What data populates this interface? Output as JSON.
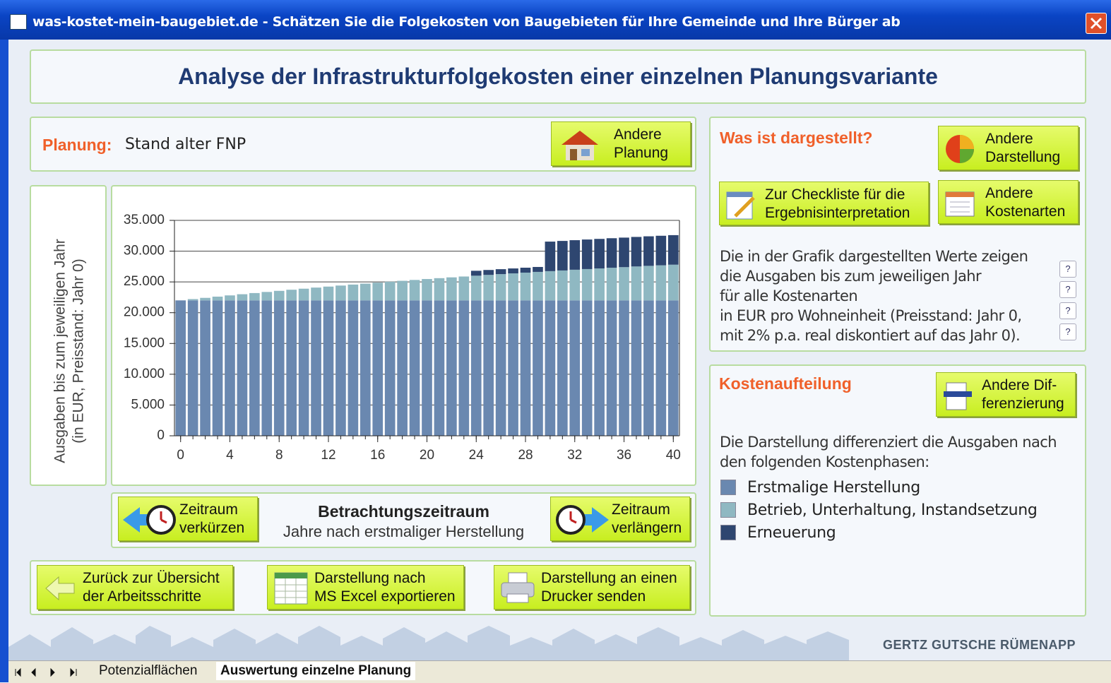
{
  "window_title": "was-kostet-mein-baugebiet.de - Schätzen Sie die Folgekosten von Baugebieten für Ihre Gemeinde und Ihre Bürger ab",
  "header": {
    "title": "Analyse der Infrastrukturfolgekosten einer einzelnen Planungsvariante"
  },
  "planning": {
    "label": "Planung:",
    "value": "Stand alter FNP",
    "button": [
      "Andere",
      "Planung"
    ]
  },
  "info": {
    "title": "Was ist dargestellt?",
    "buttons": {
      "display": [
        "Andere",
        "Darstellung"
      ],
      "checklist": [
        "Zur Checkliste für die",
        "Ergebnisinterpretation"
      ],
      "cost_types": [
        "Andere",
        "Kostenarten"
      ]
    },
    "text": [
      "Die in der Grafik dargestellten Werte zeigen",
      "die Ausgaben bis zum jeweiligen Jahr",
      "für alle Kostenarten",
      "in EUR pro Wohneinheit (Preisstand: Jahr 0,",
      "mit 2% p.a. real diskontiert auf das Jahr 0)."
    ],
    "help": [
      "?",
      "?",
      "?",
      "?"
    ]
  },
  "breakdown": {
    "title": "Kostenaufteilung",
    "button": [
      "Andere Dif-",
      "ferenzierung"
    ],
    "text": [
      "Die Darstellung differenziert die Ausgaben nach",
      "den folgenden Kostenphasen:"
    ]
  },
  "period": {
    "shorten": [
      "Zeitraum",
      "verkürzen"
    ],
    "title": "Betrachtungszeitraum",
    "subtitle": "Jahre nach erstmaliger Herstellung",
    "extend": [
      "Zeitraum",
      "verlängern"
    ]
  },
  "actions": {
    "back": [
      "Zurück zur Übersicht",
      "der Arbeitsschritte"
    ],
    "excel": [
      "Darstellung nach",
      "MS Excel exportieren"
    ],
    "print": [
      "Darstellung an einen",
      "Drucker senden"
    ]
  },
  "logo": "GERTZ GUTSCHE RÜMENAPP",
  "tabs": [
    "Potenzialflächen",
    "Auswertung einzelne Planung"
  ],
  "chart_data": {
    "type": "bar",
    "stacked": true,
    "y_label": [
      "Ausgaben bis zum jeweiligen Jahr",
      "(in EUR, Preisstand: Jahr 0)"
    ],
    "x": [
      0,
      1,
      2,
      3,
      4,
      5,
      6,
      7,
      8,
      9,
      10,
      11,
      12,
      13,
      14,
      15,
      16,
      17,
      18,
      19,
      20,
      21,
      22,
      23,
      24,
      25,
      26,
      27,
      28,
      29,
      30,
      31,
      32,
      33,
      34,
      35,
      36,
      37,
      38,
      39,
      40
    ],
    "series": [
      {
        "name": "Erstmalige Herstellung",
        "color": "#6a88b0",
        "values": [
          22000,
          22000,
          22000,
          22000,
          22000,
          22000,
          22000,
          22000,
          22000,
          22000,
          22000,
          22000,
          22000,
          22000,
          22000,
          22000,
          22000,
          22000,
          22000,
          22000,
          22000,
          22000,
          22000,
          22000,
          22000,
          22000,
          22000,
          22000,
          22000,
          22000,
          22000,
          22000,
          22000,
          22000,
          22000,
          22000,
          22000,
          22000,
          22000,
          22000,
          22000
        ]
      },
      {
        "name": "Betrieb, Unterhaltung, Instandsetzung",
        "color": "#8fb8c2",
        "values": [
          0,
          210,
          410,
          610,
          810,
          1000,
          1190,
          1370,
          1550,
          1730,
          1900,
          2080,
          2240,
          2410,
          2570,
          2720,
          2880,
          3030,
          3180,
          3320,
          3470,
          3610,
          3740,
          3880,
          4010,
          4140,
          4270,
          4390,
          4510,
          4630,
          4750,
          4860,
          4980,
          5090,
          5190,
          5300,
          5400,
          5510,
          5610,
          5700,
          5800
        ]
      },
      {
        "name": "Erneuerung",
        "color": "#2e4670",
        "values": [
          0,
          0,
          0,
          0,
          0,
          0,
          0,
          0,
          0,
          0,
          0,
          0,
          0,
          0,
          0,
          0,
          0,
          0,
          0,
          0,
          0,
          0,
          0,
          0,
          800,
          800,
          800,
          800,
          800,
          800,
          4800,
          4800,
          4800,
          4800,
          4800,
          4800,
          4800,
          4800,
          4800,
          4800,
          4800
        ]
      }
    ],
    "xlim": [
      -0.5,
      40.5
    ],
    "xticks": [
      0,
      4,
      8,
      12,
      16,
      20,
      24,
      28,
      32,
      36,
      40
    ],
    "ylim": [
      0,
      35000
    ],
    "yticks": [
      0,
      {
        "value": 5000,
        "label": "5.000"
      },
      {
        "value": 10000,
        "label": "10.000"
      },
      {
        "value": 15000,
        "label": "15.000"
      },
      {
        "value": 20000,
        "label": "20.000"
      },
      {
        "value": 25000,
        "label": "25.000"
      },
      {
        "value": 30000,
        "label": "30.000"
      },
      {
        "value": 35000,
        "label": "35.000"
      }
    ],
    "grid": true
  }
}
